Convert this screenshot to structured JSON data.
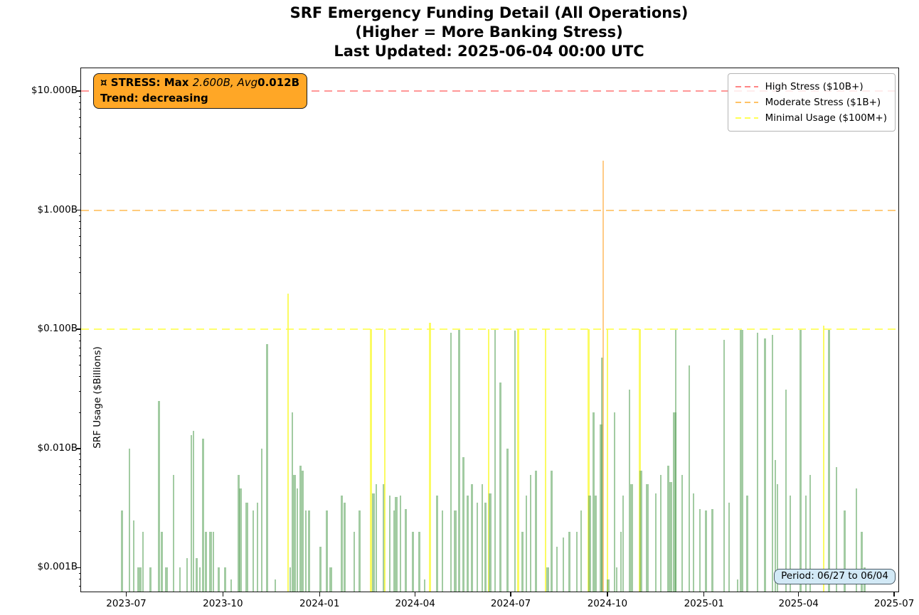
{
  "annotation": {
    "prefix": "¤ STRESS: Max ",
    "math_italic": "2.600B, Avg",
    "bold_value": "0.012B",
    "line2": "Trend: decreasing",
    "bg": "#FFA726"
  },
  "period_badge": {
    "label": "Period: 06/27 to 06/04",
    "bg": "#D2E9F6"
  },
  "chart_data": {
    "type": "bar",
    "title_line1": "SRF Emergency Funding Detail (All Operations)",
    "title_line2": "(Higher = More Banking Stress)",
    "title_line3": "Last Updated: 2025-06-04 00:00 UTC",
    "ylabel": "SRF Usage ($Billions)",
    "y_scale": "log",
    "grid": "off",
    "legend_position": "upper right",
    "y_domain": [
      0.00063,
      15.5
    ],
    "x_domain": [
      "2023-05-19",
      "2025-07-05"
    ],
    "x_ticks": [
      {
        "label": "2023-07",
        "date": "2023-07-01"
      },
      {
        "label": "2023-10",
        "date": "2023-10-01"
      },
      {
        "label": "2024-01",
        "date": "2024-01-01"
      },
      {
        "label": "2024-04",
        "date": "2024-04-01"
      },
      {
        "label": "2024-07",
        "date": "2024-07-01"
      },
      {
        "label": "2024-10",
        "date": "2024-10-01"
      },
      {
        "label": "2025-01",
        "date": "2025-01-01"
      },
      {
        "label": "2025-04",
        "date": "2025-04-01"
      },
      {
        "label": "2025-07",
        "date": "2025-07-01"
      }
    ],
    "y_ticks": [
      {
        "label": "$10.000B",
        "value": 10
      },
      {
        "label": "$1.000B",
        "value": 1
      },
      {
        "label": "$0.100B",
        "value": 0.1
      },
      {
        "label": "$0.010B",
        "value": 0.01
      },
      {
        "label": "$0.001B",
        "value": 0.001
      }
    ],
    "reference_lines": [
      {
        "value": 10,
        "label": "High Stress ($10B+)",
        "color": "#FF8585"
      },
      {
        "value": 1,
        "label": "Moderate Stress ($1B+)",
        "color": "#FFC266"
      },
      {
        "value": 0.1,
        "label": "Minimal Usage ($100M+)",
        "color": "#FFFF55"
      }
    ],
    "bar_color_thresholds": {
      "high": 10,
      "moderate": 1,
      "minimal": 0.1
    },
    "bar_colors": {
      "high": "#FF5A5A",
      "moderate": "#FFAF46",
      "minimal": "#FAFA46",
      "normal": "#55A055"
    },
    "stats": {
      "max_billions": 2.6,
      "avg_billions": 0.012,
      "trend": "decreasing",
      "period_start": "06/27",
      "period_end": "06/04"
    },
    "bars": [
      [
        "2023-06-27",
        0.003
      ],
      [
        "2023-07-04",
        0.01
      ],
      [
        "2023-07-08",
        0.0025
      ],
      [
        "2023-07-12",
        0.001
      ],
      [
        "2023-07-14",
        0.001,
        4
      ],
      [
        "2023-07-17",
        0.002
      ],
      [
        "2023-07-24",
        0.001
      ],
      [
        "2023-08-01",
        0.025
      ],
      [
        "2023-08-04",
        0.002
      ],
      [
        "2023-08-08",
        0.001,
        4
      ],
      [
        "2023-08-15",
        0.006
      ],
      [
        "2023-08-21",
        0.001
      ],
      [
        "2023-08-28",
        0.0012
      ],
      [
        "2023-09-01",
        0.013
      ],
      [
        "2023-09-03",
        0.014
      ],
      [
        "2023-09-06",
        0.0012
      ],
      [
        "2023-09-09",
        0.001
      ],
      [
        "2023-09-12",
        0.012
      ],
      [
        "2023-09-15",
        0.002
      ],
      [
        "2023-09-19",
        0.002,
        4
      ],
      [
        "2023-09-22",
        0.002
      ],
      [
        "2023-09-27",
        0.001
      ],
      [
        "2023-10-03",
        0.001
      ],
      [
        "2023-10-09",
        0.0008
      ],
      [
        "2023-10-16",
        0.006
      ],
      [
        "2023-10-18",
        0.0046,
        4
      ],
      [
        "2023-10-24",
        0.0035,
        4
      ],
      [
        "2023-10-30",
        0.003
      ],
      [
        "2023-11-03",
        0.0035
      ],
      [
        "2023-11-07",
        0.01
      ],
      [
        "2023-11-12",
        0.075
      ],
      [
        "2023-11-20",
        0.0008
      ],
      [
        "2023-12-02",
        0.2
      ],
      [
        "2023-12-04",
        0.001
      ],
      [
        "2023-12-06",
        0.02
      ],
      [
        "2023-12-08",
        0.006,
        4
      ],
      [
        "2023-12-11",
        0.0046
      ],
      [
        "2023-12-14",
        0.0072
      ],
      [
        "2023-12-16",
        0.0065
      ],
      [
        "2023-12-19",
        0.003
      ],
      [
        "2023-12-22",
        0.003
      ],
      [
        "2024-01-02",
        0.0015
      ],
      [
        "2024-01-08",
        0.003
      ],
      [
        "2024-01-12",
        0.001,
        4
      ],
      [
        "2024-01-22",
        0.004
      ],
      [
        "2024-01-25",
        0.0035
      ],
      [
        "2024-02-03",
        0.002
      ],
      [
        "2024-02-08",
        0.003
      ],
      [
        "2024-02-19",
        0.1
      ],
      [
        "2024-02-21",
        0.0042,
        4
      ],
      [
        "2024-02-24",
        0.005
      ],
      [
        "2024-03-02",
        0.005
      ],
      [
        "2024-03-03",
        0.1
      ],
      [
        "2024-03-08",
        0.004
      ],
      [
        "2024-03-12",
        0.003
      ],
      [
        "2024-03-14",
        0.0039,
        4
      ],
      [
        "2024-03-18",
        0.004
      ],
      [
        "2024-03-23",
        0.0031
      ],
      [
        "2024-03-30",
        0.002
      ],
      [
        "2024-04-05",
        0.002
      ],
      [
        "2024-04-10",
        0.0008
      ],
      [
        "2024-04-15",
        0.113
      ],
      [
        "2024-04-22",
        0.004
      ],
      [
        "2024-04-27",
        0.003
      ],
      [
        "2024-05-05",
        0.093
      ],
      [
        "2024-05-09",
        0.003,
        4
      ],
      [
        "2024-05-13",
        0.099
      ],
      [
        "2024-05-17",
        0.0085
      ],
      [
        "2024-05-21",
        0.004
      ],
      [
        "2024-05-25",
        0.005
      ],
      [
        "2024-05-30",
        0.0035
      ],
      [
        "2024-06-04",
        0.005
      ],
      [
        "2024-06-07",
        0.0035
      ],
      [
        "2024-06-10",
        0.1
      ],
      [
        "2024-06-11",
        0.0042,
        4
      ],
      [
        "2024-06-16",
        0.099
      ],
      [
        "2024-06-21",
        0.036
      ],
      [
        "2024-06-28",
        0.01
      ],
      [
        "2024-07-05",
        0.097
      ],
      [
        "2024-07-08",
        0.1
      ],
      [
        "2024-07-12",
        0.002
      ],
      [
        "2024-07-16",
        0.004
      ],
      [
        "2024-07-20",
        0.006
      ],
      [
        "2024-07-25",
        0.0065
      ],
      [
        "2024-08-03",
        0.1
      ],
      [
        "2024-08-05",
        0.001,
        4
      ],
      [
        "2024-08-09",
        0.0065
      ],
      [
        "2024-08-14",
        0.0015
      ],
      [
        "2024-08-20",
        0.0018
      ],
      [
        "2024-08-26",
        0.002
      ],
      [
        "2024-09-02",
        0.002
      ],
      [
        "2024-09-06",
        0.003
      ],
      [
        "2024-09-13",
        0.1
      ],
      [
        "2024-09-14",
        0.004,
        4
      ],
      [
        "2024-09-18",
        0.02
      ],
      [
        "2024-09-20",
        0.004
      ],
      [
        "2024-09-25",
        0.016,
        4
      ],
      [
        "2024-09-26",
        0.058
      ],
      [
        "2024-09-27",
        2.6
      ],
      [
        "2024-10-01",
        0.1
      ],
      [
        "2024-10-02",
        0.0008,
        4
      ],
      [
        "2024-10-08",
        0.02
      ],
      [
        "2024-10-10",
        0.001
      ],
      [
        "2024-10-14",
        0.002
      ],
      [
        "2024-10-16",
        0.004
      ],
      [
        "2024-10-22",
        0.031
      ],
      [
        "2024-10-24",
        0.005,
        4
      ],
      [
        "2024-11-01",
        0.1
      ],
      [
        "2024-11-02",
        0.0065,
        4
      ],
      [
        "2024-11-08",
        0.005,
        4
      ],
      [
        "2024-11-16",
        0.0042
      ],
      [
        "2024-11-21",
        0.006
      ],
      [
        "2024-11-28",
        0.0072
      ],
      [
        "2024-11-30",
        0.0052,
        4
      ],
      [
        "2024-12-04",
        0.02,
        5
      ],
      [
        "2024-12-05",
        0.099
      ],
      [
        "2024-12-11",
        0.006
      ],
      [
        "2024-12-18",
        0.05
      ],
      [
        "2024-12-22",
        0.0042
      ],
      [
        "2024-12-28",
        0.0031
      ],
      [
        "2025-01-03",
        0.003
      ],
      [
        "2025-01-09",
        0.0031
      ],
      [
        "2025-01-20",
        0.082
      ],
      [
        "2025-01-25",
        0.0035
      ],
      [
        "2025-02-02",
        0.0008
      ],
      [
        "2025-02-06",
        0.099,
        5
      ],
      [
        "2025-02-11",
        0.004
      ],
      [
        "2025-02-21",
        0.094
      ],
      [
        "2025-02-28",
        0.084
      ],
      [
        "2025-03-07",
        0.09
      ],
      [
        "2025-03-10",
        0.008
      ],
      [
        "2025-03-12",
        0.005
      ],
      [
        "2025-03-20",
        0.031
      ],
      [
        "2025-03-24",
        0.004
      ],
      [
        "2025-04-03",
        0.099
      ],
      [
        "2025-04-08",
        0.004
      ],
      [
        "2025-04-12",
        0.006
      ],
      [
        "2025-04-25",
        0.108
      ],
      [
        "2025-04-30",
        0.099
      ],
      [
        "2025-05-07",
        0.007
      ],
      [
        "2025-05-15",
        0.003
      ],
      [
        "2025-05-26",
        0.0046
      ],
      [
        "2025-05-31",
        0.002
      ],
      [
        "2025-06-03",
        0.001
      ]
    ]
  }
}
